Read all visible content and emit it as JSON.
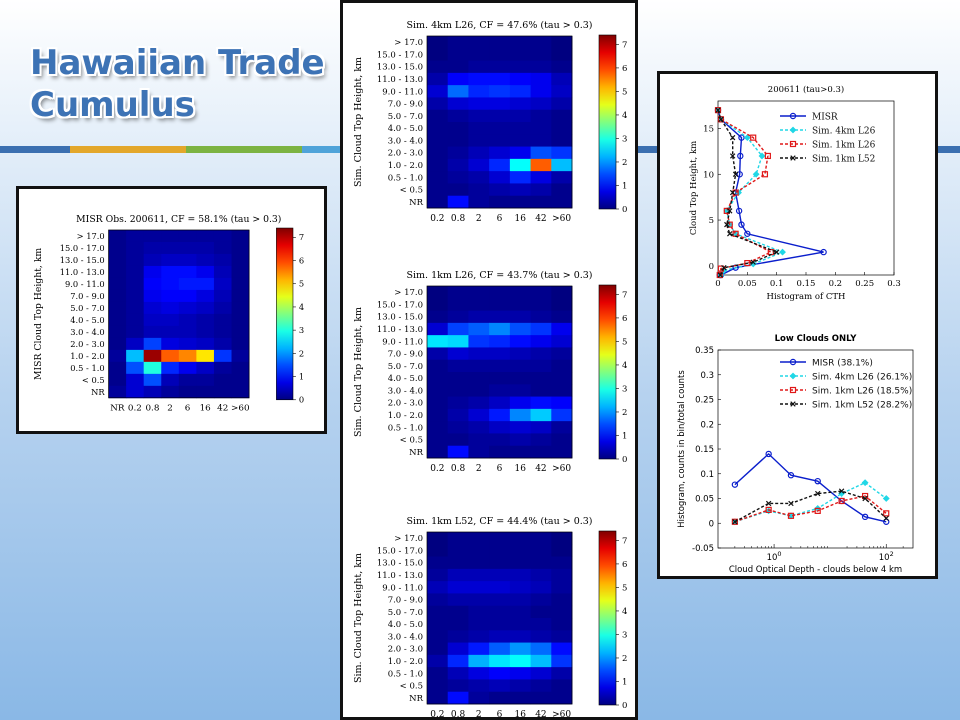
{
  "slide": {
    "title_line1": "Hawaiian Trade",
    "title_line2": "Cumulus",
    "stripe_colors": [
      "#3b6fb0",
      "#e3a72b",
      "#7cb342",
      "#4fa3d9"
    ]
  },
  "heatmap_common": {
    "y_categories": [
      "> 17.0",
      "15.0 - 17.0",
      "13.0 - 15.0",
      "11.0 - 13.0",
      "9.0 - 11.0",
      "7.0 - 9.0",
      "5.0 - 7.0",
      "4.0 - 5.0",
      "3.0 - 4.0",
      "2.0 - 3.0",
      "1.0 - 2.0",
      "0.5 - 1.0",
      "< 0.5",
      "NR"
    ],
    "colorbar_ticks": [
      "0",
      "1",
      "2",
      "3",
      "4",
      "5",
      "6",
      "7"
    ],
    "vmax": 7.4
  },
  "chart_data": [
    {
      "type": "heatmap",
      "title": "MISR Obs. 200611, CF = 58.1% (tau > 0.3)",
      "ylabel": "MISR Cloud Top Height, km",
      "x_categories": [
        "NR",
        "0.2",
        "0.8",
        "2",
        "6",
        "16",
        "42",
        ">60"
      ],
      "values": [
        [
          0.1,
          0.2,
          0.2,
          0.2,
          0.2,
          0.2,
          0.2,
          0.1
        ],
        [
          0.1,
          0.2,
          0.3,
          0.3,
          0.3,
          0.3,
          0.2,
          0.1
        ],
        [
          0.1,
          0.2,
          0.4,
          0.5,
          0.5,
          0.4,
          0.3,
          0.1
        ],
        [
          0.1,
          0.2,
          0.8,
          1.0,
          1.0,
          0.8,
          0.4,
          0.1
        ],
        [
          0.1,
          0.2,
          0.9,
          1.0,
          1.1,
          1.1,
          0.5,
          0.1
        ],
        [
          0.1,
          0.2,
          0.8,
          0.9,
          0.9,
          0.7,
          0.4,
          0.1
        ],
        [
          0.1,
          0.2,
          0.6,
          0.7,
          0.6,
          0.5,
          0.3,
          0.1
        ],
        [
          0.1,
          0.2,
          0.5,
          0.5,
          0.4,
          0.3,
          0.2,
          0.1
        ],
        [
          0.1,
          0.2,
          0.4,
          0.4,
          0.4,
          0.3,
          0.2,
          0.1
        ],
        [
          0.1,
          0.5,
          1.4,
          0.7,
          0.6,
          0.5,
          0.3,
          0.1
        ],
        [
          0.2,
          2.3,
          7.2,
          5.8,
          5.5,
          4.8,
          1.3,
          0.2
        ],
        [
          0.1,
          1.5,
          3.0,
          1.2,
          0.8,
          0.5,
          0.2,
          0.1
        ],
        [
          0.1,
          0.6,
          1.5,
          0.4,
          0.2,
          0.2,
          0.1,
          0.1
        ],
        [
          0.2,
          0.6,
          0.4,
          0.2,
          0.1,
          0.1,
          0.1,
          0.1
        ]
      ]
    },
    {
      "type": "heatmap",
      "title": "Sim. 4km L26, CF = 47.6% (tau > 0.3)",
      "ylabel": "Sim. Cloud Top Height, km",
      "x_categories": [
        "0.2",
        "0.8",
        "2",
        "6",
        "16",
        "42",
        ">60"
      ],
      "values": [
        [
          0.0,
          0.1,
          0.1,
          0.1,
          0.1,
          0.1,
          0.0
        ],
        [
          0.0,
          0.1,
          0.1,
          0.1,
          0.1,
          0.1,
          0.0
        ],
        [
          0.1,
          0.1,
          0.2,
          0.2,
          0.2,
          0.2,
          0.1
        ],
        [
          0.3,
          0.9,
          1.0,
          1.0,
          0.9,
          0.8,
          0.4
        ],
        [
          0.6,
          1.7,
          1.2,
          1.3,
          1.2,
          0.8,
          0.5
        ],
        [
          0.3,
          0.6,
          0.7,
          0.7,
          0.6,
          0.5,
          0.3
        ],
        [
          0.1,
          0.2,
          0.3,
          0.3,
          0.3,
          0.2,
          0.1
        ],
        [
          0.1,
          0.1,
          0.2,
          0.2,
          0.2,
          0.2,
          0.1
        ],
        [
          0.1,
          0.1,
          0.2,
          0.2,
          0.2,
          0.2,
          0.1
        ],
        [
          0.1,
          0.2,
          0.4,
          0.6,
          0.8,
          1.5,
          1.3
        ],
        [
          0.1,
          0.3,
          0.6,
          1.2,
          2.8,
          5.8,
          2.3
        ],
        [
          0.1,
          0.2,
          0.3,
          0.6,
          1.2,
          0.7,
          0.3
        ],
        [
          0.1,
          0.1,
          0.2,
          0.3,
          0.4,
          0.3,
          0.1
        ],
        [
          0.1,
          1.0,
          0.2,
          0.1,
          0.1,
          0.1,
          0.1
        ]
      ]
    },
    {
      "type": "heatmap",
      "title": "Sim. 1km L26, CF = 43.7% (tau > 0.3)",
      "ylabel": "Sim. Cloud Top Height, km",
      "x_categories": [
        "0.2",
        "0.8",
        "2",
        "6",
        "16",
        "42",
        ">60"
      ],
      "values": [
        [
          0.0,
          0.1,
          0.1,
          0.1,
          0.1,
          0.1,
          0.0
        ],
        [
          0.0,
          0.1,
          0.1,
          0.1,
          0.1,
          0.1,
          0.0
        ],
        [
          0.1,
          0.2,
          0.3,
          0.3,
          0.3,
          0.2,
          0.1
        ],
        [
          0.6,
          1.4,
          1.6,
          1.9,
          1.5,
          1.3,
          0.8
        ],
        [
          2.6,
          2.5,
          1.3,
          1.2,
          1.0,
          0.8,
          0.6
        ],
        [
          0.3,
          0.6,
          0.5,
          0.5,
          0.4,
          0.3,
          0.2
        ],
        [
          0.1,
          0.2,
          0.2,
          0.2,
          0.2,
          0.2,
          0.1
        ],
        [
          0.1,
          0.1,
          0.1,
          0.1,
          0.1,
          0.1,
          0.1
        ],
        [
          0.1,
          0.1,
          0.1,
          0.2,
          0.2,
          0.1,
          0.1
        ],
        [
          0.1,
          0.2,
          0.3,
          0.5,
          0.8,
          1.0,
          0.9
        ],
        [
          0.1,
          0.3,
          0.6,
          1.1,
          1.9,
          2.4,
          1.3
        ],
        [
          0.1,
          0.2,
          0.3,
          0.5,
          0.6,
          0.5,
          0.2
        ],
        [
          0.1,
          0.1,
          0.2,
          0.2,
          0.3,
          0.2,
          0.1
        ],
        [
          0.1,
          1.0,
          0.2,
          0.1,
          0.1,
          0.1,
          0.1
        ]
      ]
    },
    {
      "type": "heatmap",
      "title": "Sim. 1km L52, CF = 44.4% (tau > 0.3)",
      "ylabel": "Sim. Cloud Top Height, km",
      "x_categories": [
        "0.2",
        "0.8",
        "2",
        "6",
        "16",
        "42",
        ">60"
      ],
      "values": [
        [
          0.0,
          0.1,
          0.1,
          0.1,
          0.1,
          0.1,
          0.0
        ],
        [
          0.0,
          0.1,
          0.1,
          0.1,
          0.1,
          0.1,
          0.0
        ],
        [
          0.1,
          0.1,
          0.1,
          0.1,
          0.1,
          0.1,
          0.1
        ],
        [
          0.2,
          0.4,
          0.4,
          0.4,
          0.4,
          0.3,
          0.2
        ],
        [
          0.4,
          0.6,
          0.6,
          0.6,
          0.5,
          0.4,
          0.2
        ],
        [
          0.2,
          0.3,
          0.3,
          0.3,
          0.3,
          0.2,
          0.1
        ],
        [
          0.1,
          0.1,
          0.2,
          0.2,
          0.2,
          0.1,
          0.1
        ],
        [
          0.1,
          0.1,
          0.2,
          0.2,
          0.2,
          0.2,
          0.1
        ],
        [
          0.1,
          0.2,
          0.3,
          0.4,
          0.4,
          0.3,
          0.2
        ],
        [
          0.1,
          0.6,
          1.1,
          1.6,
          2.0,
          1.7,
          1.0
        ],
        [
          0.3,
          1.2,
          2.2,
          2.6,
          2.8,
          2.3,
          1.3
        ],
        [
          0.1,
          0.4,
          0.7,
          0.9,
          0.8,
          0.6,
          0.3
        ],
        [
          0.1,
          0.2,
          0.3,
          0.4,
          0.3,
          0.2,
          0.1
        ],
        [
          0.1,
          1.0,
          0.2,
          0.1,
          0.1,
          0.1,
          0.1
        ]
      ]
    },
    {
      "type": "line",
      "title": "200611 (tau>0.3)",
      "xlabel": "Histogram of CTH",
      "ylabel": "Cloud Top Height, km",
      "xlim": [
        0,
        0.3
      ],
      "ylim": [
        -1,
        18
      ],
      "x_ticks": [
        "0",
        "0.05",
        "0.1",
        "0.15",
        "0.2",
        "0.25",
        "0.3"
      ],
      "y_ticks": [
        "0",
        "5",
        "10",
        "15"
      ],
      "legend_position": "top-right",
      "series": [
        {
          "name": "MISR",
          "color": "#0a1ecc",
          "dash": "",
          "marker": "circle",
          "x": [
            0.0,
            0.005,
            0.04,
            0.038,
            0.037,
            0.03,
            0.036,
            0.04,
            0.05,
            0.18,
            0.03,
            0.005,
            0.003
          ],
          "y": [
            17,
            16,
            14,
            12,
            10,
            8,
            6,
            4.5,
            3.5,
            1.5,
            -0.2,
            -1,
            -1
          ]
        },
        {
          "name": "Sim. 4km L26",
          "color": "#20d7e6",
          "dash": "3 2",
          "marker": "diamond",
          "x": [
            0.0,
            0.005,
            0.05,
            0.075,
            0.065,
            0.035,
            0.015,
            0.02,
            0.03,
            0.11,
            0.06,
            0.01,
            0.005
          ],
          "y": [
            17,
            16,
            14,
            12,
            10,
            8,
            6,
            4.5,
            3.5,
            1.5,
            0.2,
            -0.5,
            -1
          ]
        },
        {
          "name": "Sim. 1km L26",
          "color": "#e01818",
          "dash": "3 2",
          "marker": "square",
          "x": [
            0.0,
            0.005,
            0.06,
            0.085,
            0.08,
            0.03,
            0.015,
            0.02,
            0.03,
            0.09,
            0.05,
            0.005,
            0.003
          ],
          "y": [
            17,
            16,
            14,
            12,
            10,
            8,
            6,
            4.5,
            3.5,
            1.5,
            0.3,
            -0.3,
            -1
          ]
        },
        {
          "name": "Sim. 1km L52",
          "color": "#111111",
          "dash": "3 2",
          "marker": "x",
          "x": [
            0.0,
            0.005,
            0.025,
            0.025,
            0.03,
            0.025,
            0.02,
            0.015,
            0.02,
            0.1,
            0.06,
            0.01,
            0.004
          ],
          "y": [
            17,
            16,
            14,
            12,
            10,
            8,
            6,
            4.5,
            3.5,
            1.5,
            0.4,
            -0.2,
            -1
          ]
        }
      ]
    },
    {
      "type": "line",
      "title": "Low Clouds ONLY",
      "xlabel": "Cloud Optical Depth - clouds below 4 km",
      "ylabel": "Histogram, counts in bin/total counts",
      "xscale": "log",
      "xlim": [
        0.1,
        300
      ],
      "ylim": [
        -0.05,
        0.35
      ],
      "x_tick_labels": [
        {
          "base": "10",
          "exp": "0",
          "value": 1
        },
        {
          "base": "10",
          "exp": "2",
          "value": 100
        }
      ],
      "y_ticks": [
        "-0.05",
        "0",
        "0.05",
        "0.1",
        "0.15",
        "0.2",
        "0.25",
        "0.3",
        "0.35"
      ],
      "legend_position": "top-right",
      "series": [
        {
          "name": "MISR (38.1%)",
          "color": "#0a1ecc",
          "dash": "",
          "marker": "circle",
          "x": [
            0.2,
            0.8,
            2,
            6,
            16,
            42,
            100
          ],
          "y": [
            0.078,
            0.14,
            0.097,
            0.085,
            0.045,
            0.013,
            0.003
          ]
        },
        {
          "name": "Sim. 4km L26 (26.1%)",
          "color": "#20d7e6",
          "dash": "3 2",
          "marker": "diamond",
          "x": [
            0.2,
            0.8,
            2,
            6,
            16,
            42,
            100
          ],
          "y": [
            0.003,
            0.025,
            0.015,
            0.03,
            0.06,
            0.082,
            0.05
          ]
        },
        {
          "name": "Sim. 1km L26 (18.5%)",
          "color": "#e01818",
          "dash": "3 2",
          "marker": "square",
          "x": [
            0.2,
            0.8,
            2,
            6,
            16,
            42,
            100
          ],
          "y": [
            0.003,
            0.027,
            0.015,
            0.025,
            0.045,
            0.055,
            0.02
          ]
        },
        {
          "name": "Sim. 1km L52 (28.2%)",
          "color": "#111111",
          "dash": "3 2",
          "marker": "x",
          "x": [
            0.2,
            0.8,
            2,
            6,
            16,
            42,
            100
          ],
          "y": [
            0.003,
            0.04,
            0.04,
            0.06,
            0.065,
            0.05,
            0.01
          ]
        }
      ]
    }
  ]
}
